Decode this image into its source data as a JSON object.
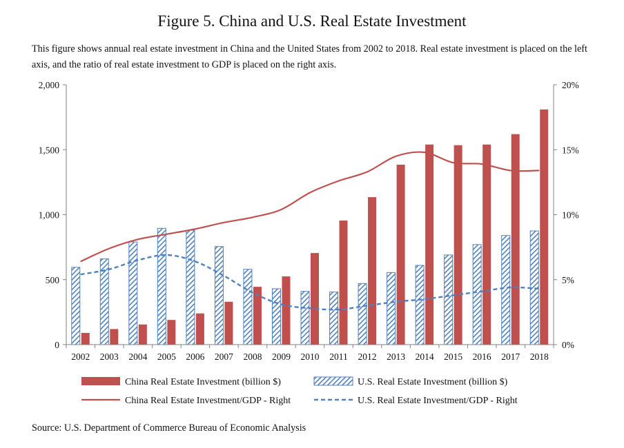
{
  "figure": {
    "title": "Figure 5. China and U.S. Real Estate Investment",
    "caption": "This figure shows annual real estate investment in China and the United States from 2002 to 2018. Real estate investment is placed on the left axis, and the ratio of real estate investment to GDP is placed on the right axis.",
    "source": "Source: U.S. Department of Commerce Bureau of Economic Analysis"
  },
  "colors": {
    "china": "#c0504d",
    "us": "#4f81bd"
  },
  "chart_data": {
    "type": "bar",
    "title": "",
    "xlabel": "",
    "ylabel": "",
    "categories": [
      "2002",
      "2003",
      "2004",
      "2005",
      "2006",
      "2007",
      "2008",
      "2009",
      "2010",
      "2011",
      "2012",
      "2013",
      "2014",
      "2015",
      "2016",
      "2017",
      "2018"
    ],
    "ylim_left": [
      0,
      2000
    ],
    "yticks_left": [
      0,
      500,
      1000,
      1500,
      2000
    ],
    "ytick_labels_left": [
      "0",
      "500",
      "1,000",
      "1,500",
      "2,000"
    ],
    "ylim_right": [
      0,
      20
    ],
    "yticks_right": [
      0,
      5,
      10,
      15,
      20
    ],
    "ytick_labels_right": [
      "0%",
      "5%",
      "10%",
      "15%",
      "20%"
    ],
    "grid": false,
    "legend_position": "bottom",
    "series": [
      {
        "name": "China Real Estate Investment (billion $)",
        "type": "bar",
        "axis": "left",
        "style": "solid",
        "values": [
          90,
          120,
          155,
          190,
          240,
          330,
          445,
          525,
          705,
          955,
          1135,
          1385,
          1540,
          1535,
          1540,
          1620,
          1810
        ]
      },
      {
        "name": "U.S. Real Estate Investment (billion $)",
        "type": "bar",
        "axis": "left",
        "style": "hatched",
        "values": [
          595,
          660,
          790,
          895,
          880,
          755,
          580,
          430,
          410,
          405,
          470,
          555,
          610,
          690,
          770,
          840,
          875
        ]
      },
      {
        "name": "China Real Estate Investment/GDP - Right",
        "type": "line",
        "axis": "right",
        "style": "solid",
        "values": [
          6.4,
          7.4,
          8.1,
          8.5,
          8.9,
          9.4,
          9.8,
          10.4,
          11.7,
          12.6,
          13.3,
          14.5,
          14.8,
          14.0,
          13.9,
          13.4,
          13.4
        ]
      },
      {
        "name": "U.S. Real Estate Investment/GDP - Right",
        "type": "line",
        "axis": "right",
        "style": "dashed",
        "values": [
          5.4,
          5.8,
          6.5,
          6.9,
          6.4,
          5.3,
          4.0,
          3.1,
          2.8,
          2.7,
          3.0,
          3.3,
          3.5,
          3.8,
          4.1,
          4.4,
          4.3
        ]
      }
    ]
  }
}
